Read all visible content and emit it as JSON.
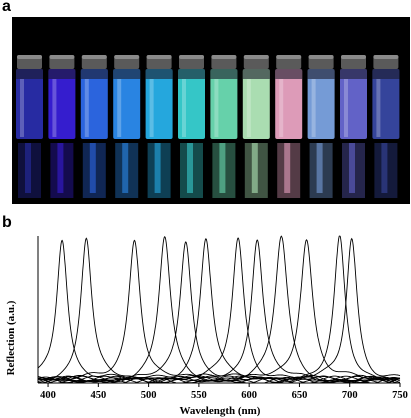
{
  "panel_a": {
    "label": "a",
    "vial_colors": [
      "#2a2fb0",
      "#3a1fe0",
      "#2f6cf0",
      "#2d8ff5",
      "#28b5f0",
      "#3ad7d8",
      "#6fe3b8",
      "#b8f0c0",
      "#f0a8c8",
      "#7fa8e8",
      "#6a6ad8",
      "#3a4aa8"
    ]
  },
  "panel_b": {
    "label": "b"
  },
  "chart_data": {
    "type": "line",
    "title": "",
    "xlabel": "Wavelength (nm)",
    "ylabel": "Reflection (a.u.)",
    "xlim": [
      390,
      750
    ],
    "ylim": [
      0,
      1
    ],
    "xticks": [
      400,
      450,
      500,
      550,
      600,
      650,
      700,
      750
    ],
    "yticks": [],
    "grid": false,
    "legend": "none",
    "series": [
      {
        "peak": 414,
        "height": 0.97,
        "width": 6.5
      },
      {
        "peak": 438,
        "height": 0.97,
        "width": 6.5
      },
      {
        "peak": 486,
        "height": 0.97,
        "width": 7
      },
      {
        "peak": 516,
        "height": 0.97,
        "width": 7
      },
      {
        "peak": 537,
        "height": 0.96,
        "width": 7
      },
      {
        "peak": 557,
        "height": 0.97,
        "width": 7
      },
      {
        "peak": 589,
        "height": 0.97,
        "width": 7
      },
      {
        "peak": 608,
        "height": 0.97,
        "width": 7
      },
      {
        "peak": 632,
        "height": 0.97,
        "width": 7.5
      },
      {
        "peak": 657,
        "height": 0.97,
        "width": 7.5
      },
      {
        "peak": 690,
        "height": 0.96,
        "width": 6.5
      },
      {
        "peak": 702,
        "height": 0.97,
        "width": 6.5
      }
    ]
  }
}
